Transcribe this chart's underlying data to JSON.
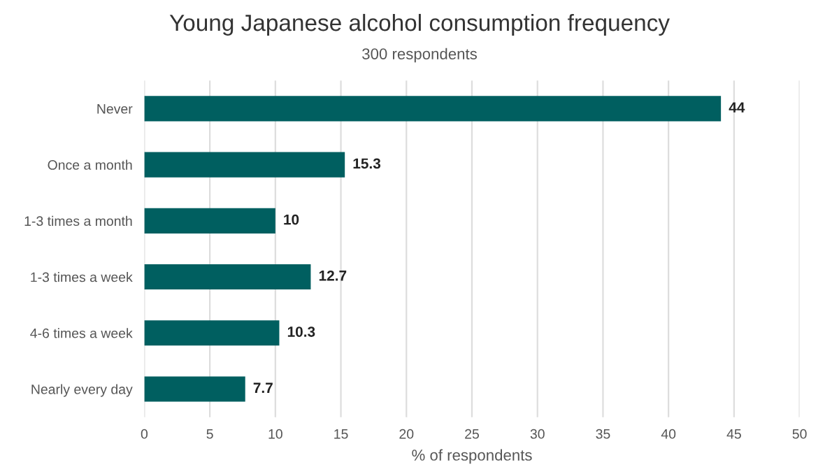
{
  "chart_data": {
    "type": "bar",
    "orientation": "horizontal",
    "title": "Young Japanese alcohol consumption frequency",
    "subtitle": "300 respondents",
    "xlabel": "% of respondents",
    "categories": [
      "Never",
      "Once a month",
      "1-3 times a month",
      "1-3 times a week",
      "4-6 times a week",
      "Nearly every day"
    ],
    "values": [
      44,
      15.3,
      10,
      12.7,
      10.3,
      7.7
    ],
    "color": "#005f60",
    "xlim": [
      0,
      50
    ],
    "xticks": [
      0,
      5,
      10,
      15,
      20,
      25,
      30,
      35,
      40,
      45,
      50
    ],
    "grid": "x",
    "data_labels": true
  }
}
